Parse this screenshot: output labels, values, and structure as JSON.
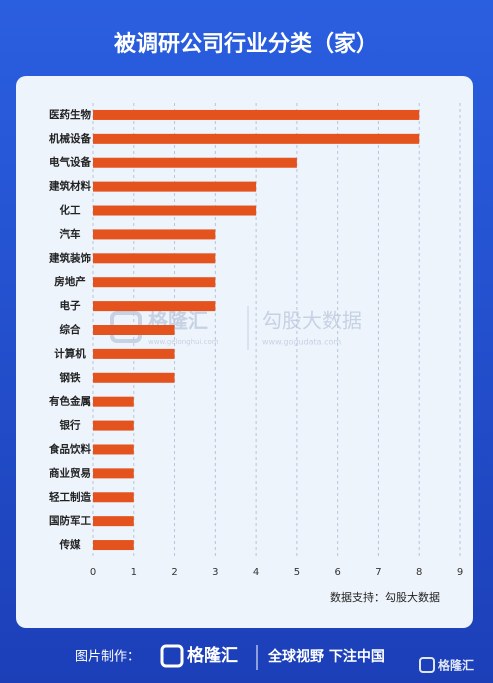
{
  "chart_data": {
    "type": "bar",
    "orientation": "horizontal",
    "title": "被调研公司行业分类（家）",
    "source": "数据支持：勾股大数据",
    "categories": [
      "医药生物",
      "机械设备",
      "电气设备",
      "建筑材料",
      "化工",
      "汽车",
      "建筑装饰",
      "房地产",
      "电子",
      "综合",
      "计算机",
      "钢铁",
      "有色金属",
      "银行",
      "食品饮料",
      "商业贸易",
      "轻工制造",
      "国防军工",
      "传媒"
    ],
    "values": [
      8,
      8,
      5,
      4,
      4,
      3,
      3,
      3,
      3,
      2,
      2,
      2,
      1,
      1,
      1,
      1,
      1,
      1,
      1
    ],
    "color": "#e4531d",
    "xlim": [
      0,
      9
    ],
    "xticks": [
      0,
      1,
      2,
      3,
      4,
      5,
      6,
      7,
      8,
      9
    ],
    "grid": true
  },
  "watermark": {
    "left_brand": "格隆汇",
    "left_url": "www.gelonghui.com",
    "right_brand": "勾股大数据",
    "right_url": "www.gogudata.com"
  },
  "footer": {
    "label": "图片制作：",
    "brand": "格隆汇",
    "slogan": "全球视野 下注中国",
    "corner_brand": "格隆汇"
  }
}
